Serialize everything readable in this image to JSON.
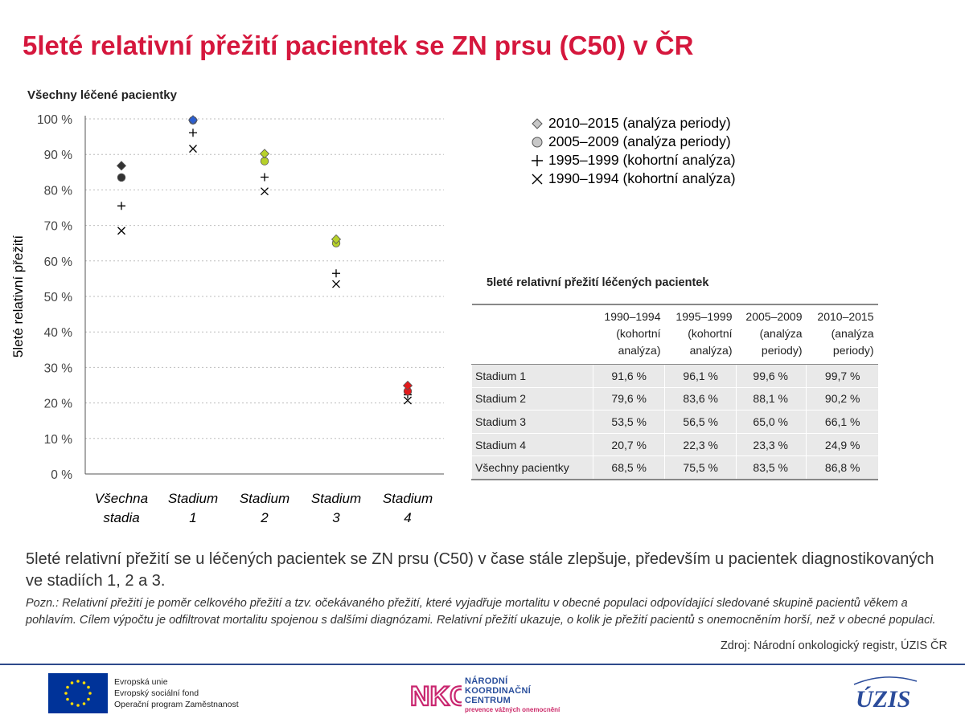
{
  "title": "5leté relativní přežití pacientek se ZN prsu (C50) v ČR",
  "chart_subtitle": "Všechny léčené pacientky",
  "chart_data": {
    "type": "scatter",
    "ylabel": "5leté relativní přežití",
    "ylim": [
      0,
      100
    ],
    "y_ticks": [
      "0 %",
      "10 %",
      "20 %",
      "30 %",
      "40 %",
      "50 %",
      "60 %",
      "70 %",
      "80 %",
      "90 %",
      "100 %"
    ],
    "grid": true,
    "legend_position": "top-right",
    "categories": [
      [
        "Všechna",
        "stadia"
      ],
      [
        "Stadium",
        "1"
      ],
      [
        "Stadium",
        "2"
      ],
      [
        "Stadium",
        "3"
      ],
      [
        "Stadium",
        "4"
      ]
    ],
    "category_colors": [
      "#333333",
      "#2c5fd1",
      "#b7d12a",
      "#b7d12a",
      "#e31a1c"
    ],
    "series": [
      {
        "name": "2010–2015 (analýza periody)",
        "marker": "diamond",
        "values": [
          86.8,
          99.7,
          90.2,
          66.1,
          24.9
        ]
      },
      {
        "name": "2005–2009 (analýza periody)",
        "marker": "circle",
        "values": [
          83.5,
          99.6,
          88.1,
          65.0,
          23.3
        ]
      },
      {
        "name": "1995–1999 (kohortní analýza)",
        "marker": "plus",
        "values": [
          75.5,
          96.1,
          83.6,
          56.5,
          22.3
        ]
      },
      {
        "name": "1990–1994 (kohortní analýza)",
        "marker": "cross",
        "values": [
          68.5,
          91.6,
          79.6,
          53.5,
          20.7
        ]
      }
    ]
  },
  "table": {
    "title": "5leté relativní přežití léčených pacientek",
    "headers": [
      [
        "1990–1994",
        "(kohortní",
        "analýza)"
      ],
      [
        "1995–1999",
        "(kohortní",
        "analýza)"
      ],
      [
        "2005–2009",
        "(analýza",
        "periody)"
      ],
      [
        "2010–2015",
        "(analýza",
        "periody)"
      ]
    ],
    "rows": [
      {
        "label": "Stadium 1",
        "values": [
          "91,6 %",
          "96,1 %",
          "99,6 %",
          "99,7 %"
        ]
      },
      {
        "label": "Stadium 2",
        "values": [
          "79,6 %",
          "83,6 %",
          "88,1 %",
          "90,2 %"
        ]
      },
      {
        "label": "Stadium 3",
        "values": [
          "53,5 %",
          "56,5 %",
          "65,0 %",
          "66,1 %"
        ]
      },
      {
        "label": "Stadium 4",
        "values": [
          "20,7 %",
          "22,3 %",
          "23,3 %",
          "24,9 %"
        ]
      },
      {
        "label": "Všechny pacientky",
        "values": [
          "68,5 %",
          "75,5 %",
          "83,5 %",
          "86,8 %"
        ]
      }
    ]
  },
  "description": "5leté relativní přežití se u léčených pacientek se ZN prsu (C50) v čase stále zlepšuje, především u pacientek diagnostikovaných ve stadiích 1, 2 a 3.",
  "note": "Pozn.: Relativní přežití je poměr celkového přežití a tzv. očekávaného přežití, které vyjadřuje mortalitu v obecné populaci odpovídající sledované skupině pacientů věkem a pohlavím. Cílem výpočtu je odfiltrovat mortalitu spojenou s dalšími diagnózami. Relativní přežití ukazuje, o kolik je přežití pacientů s onemocněním horší, než v obecné populaci.",
  "source": "Zdroj: Národní onkologický registr, ÚZIS ČR",
  "footer": {
    "eu_lines": [
      "Evropská unie",
      "Evropský sociální fond",
      "Operační program Zaměstnanost"
    ],
    "nkc_logo": "NKC",
    "nkc_lines": [
      "NÁRODNÍ",
      "KOORDINAČNÍ",
      "CENTRUM"
    ],
    "nkc_sub": "prevence vážných onemocnění",
    "uzis_logo": "ÚZIS"
  }
}
